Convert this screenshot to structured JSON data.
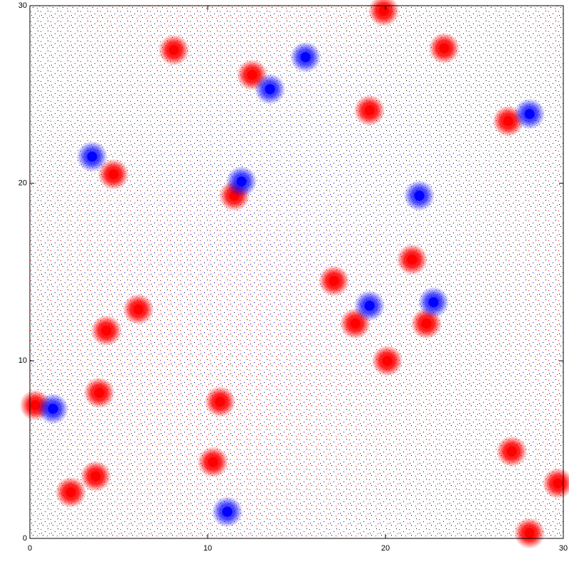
{
  "chart_data": {
    "type": "scatter",
    "xlim": [
      0,
      30
    ],
    "ylim": [
      0,
      30
    ],
    "xticks": [
      0,
      10,
      20,
      30
    ],
    "yticks": [
      0,
      10,
      20,
      30
    ],
    "series": [
      {
        "color": "#ff0000",
        "x": [
          23.3,
          19.1,
          11.5,
          18.3,
          20.1,
          3.9,
          10.3,
          3.7,
          2.3,
          0.3,
          21.5,
          22.3,
          28.1,
          10.7,
          12.5,
          8.1,
          26.9,
          4.3,
          6.1,
          17.1,
          29.7,
          27.1,
          4.7,
          19.9
        ],
        "values": [
          27.6,
          24.1,
          19.3,
          12.1,
          10.0,
          8.2,
          4.3,
          3.5,
          2.6,
          7.5,
          15.7,
          12.1,
          0.3,
          7.7,
          26.1,
          27.5,
          23.5,
          11.7,
          12.9,
          14.5,
          3.1,
          4.9,
          20.5,
          29.7
        ]
      },
      {
        "color": "#0000ff",
        "x": [
          22.7,
          11.9,
          19.1,
          1.3,
          21.9,
          11.1,
          15.5,
          13.5,
          28.1,
          3.5
        ],
        "values": [
          13.3,
          20.1,
          13.1,
          7.3,
          19.3,
          1.5,
          27.1,
          25.3,
          23.9,
          21.5
        ]
      }
    ]
  }
}
